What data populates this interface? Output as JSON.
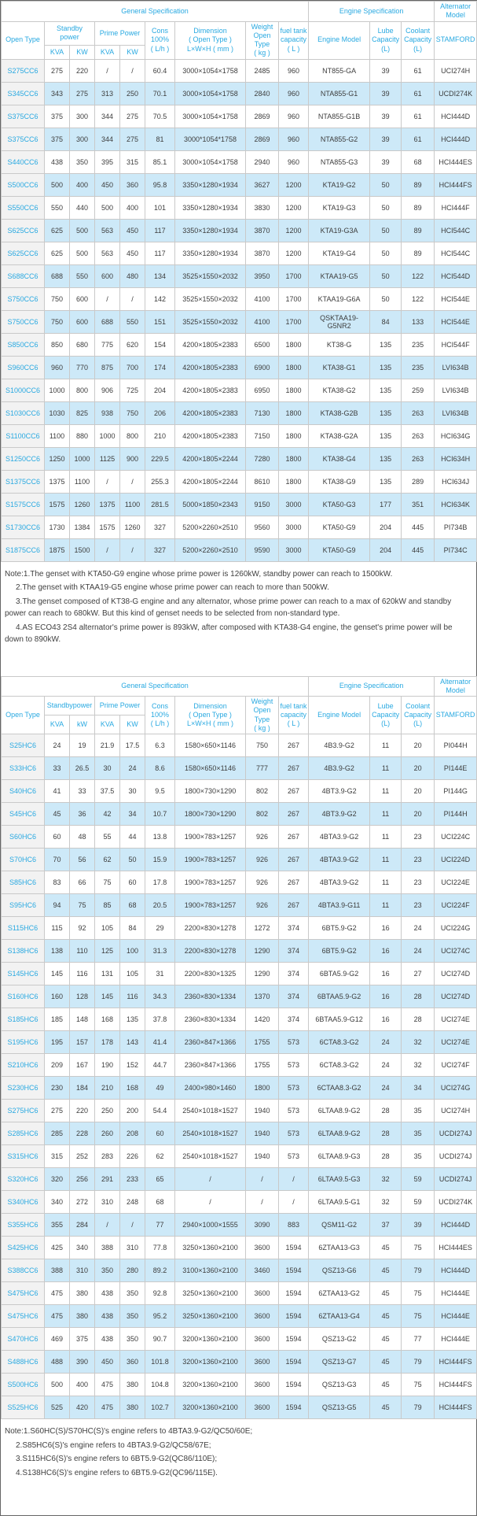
{
  "colors": {
    "accent": "#29a9e1",
    "row_alt_bg": "#cde9f8",
    "first_col_bg": "#f2f2f2",
    "border": "#c9c9c9",
    "body_text": "#3d3d3d"
  },
  "tables": [
    {
      "header": {
        "general": "General Specification",
        "engine": "Engine Specification",
        "alternator": "Alternator\nModel",
        "open_type": "Open Type",
        "standby": "Standby\npower",
        "prime": "Prime Power",
        "cons": "Cons\n100%\n( L/h )",
        "dimension": "Dimension\n( Open Type )\nL×W×H ( mm )",
        "weight": "Weight\nOpen Type\n( kg )",
        "fuel": "fuel tank\ncapacity\n( L )",
        "engine_model": "Engine Model",
        "lube": "Lube\nCapacity\n(L)",
        "coolant": "Coolant\nCapacity\n(L)",
        "stamford": "STAMFORD",
        "units": [
          "KVA",
          "KW",
          "KVA",
          "KW"
        ]
      },
      "rows": [
        [
          "S275CC6",
          "275",
          "220",
          "/",
          "/",
          "60.4",
          "3000×1054×1758",
          "2485",
          "960",
          "NT855-GA",
          "39",
          "61",
          "UCI274H"
        ],
        [
          "S345CC6",
          "343",
          "275",
          "313",
          "250",
          "70.1",
          "3000×1054×1758",
          "2840",
          "960",
          "NTA855-G1",
          "39",
          "61",
          "UCDI274K"
        ],
        [
          "S375CC6",
          "375",
          "300",
          "344",
          "275",
          "70.5",
          "3000×1054×1758",
          "2869",
          "960",
          "NTA855-G1B",
          "39",
          "61",
          "HCI444D"
        ],
        [
          "S375CC6",
          "375",
          "300",
          "344",
          "275",
          "81",
          "3000*1054*1758",
          "2869",
          "960",
          "NTA855-G2",
          "39",
          "61",
          "HCI444D"
        ],
        [
          "S440CC6",
          "438",
          "350",
          "395",
          "315",
          "85.1",
          "3000×1054×1758",
          "2940",
          "960",
          "NTA855-G3",
          "39",
          "68",
          "HCI444ES"
        ],
        [
          "S500CC6",
          "500",
          "400",
          "450",
          "360",
          "95.8",
          "3350×1280×1934",
          "3627",
          "1200",
          "KTA19-G2",
          "50",
          "89",
          "HCI444FS"
        ],
        [
          "S550CC6",
          "550",
          "440",
          "500",
          "400",
          "101",
          "3350×1280×1934",
          "3830",
          "1200",
          "KTA19-G3",
          "50",
          "89",
          "HCI444F"
        ],
        [
          "S625CC6",
          "625",
          "500",
          "563",
          "450",
          "117",
          "3350×1280×1934",
          "3870",
          "1200",
          "KTA19-G3A",
          "50",
          "89",
          "HCI544C"
        ],
        [
          "S625CC6",
          "625",
          "500",
          "563",
          "450",
          "117",
          "3350×1280×1934",
          "3870",
          "1200",
          "KTA19-G4",
          "50",
          "89",
          "HCI544C"
        ],
        [
          "S688CC6",
          "688",
          "550",
          "600",
          "480",
          "134",
          "3525×1550×2032",
          "3950",
          "1700",
          "KTAA19-G5",
          "50",
          "122",
          "HCI544D"
        ],
        [
          "S750CC6",
          "750",
          "600",
          "/",
          "/",
          "142",
          "3525×1550×2032",
          "4100",
          "1700",
          "KTAA19-G6A",
          "50",
          "122",
          "HCI544E"
        ],
        [
          "S750CC6",
          "750",
          "600",
          "688",
          "550",
          "151",
          "3525×1550×2032",
          "4100",
          "1700",
          "QSKTAA19-G5NR2",
          "84",
          "133",
          "HCI544E"
        ],
        [
          "S850CC6",
          "850",
          "680",
          "775",
          "620",
          "154",
          "4200×1805×2383",
          "6500",
          "1800",
          "KT38-G",
          "135",
          "235",
          "HCI544F"
        ],
        [
          "S960CC6",
          "960",
          "770",
          "875",
          "700",
          "174",
          "4200×1805×2383",
          "6900",
          "1800",
          "KTA38-G1",
          "135",
          "235",
          "LVI634B"
        ],
        [
          "S1000CC6",
          "1000",
          "800",
          "906",
          "725",
          "204",
          "4200×1805×2383",
          "6950",
          "1800",
          "KTA38-G2",
          "135",
          "259",
          "LVI634B"
        ],
        [
          "S1030CC6",
          "1030",
          "825",
          "938",
          "750",
          "206",
          "4200×1805×2383",
          "7130",
          "1800",
          "KTA38-G2B",
          "135",
          "263",
          "LVI634B"
        ],
        [
          "S1100CC6",
          "1100",
          "880",
          "1000",
          "800",
          "210",
          "4200×1805×2383",
          "7150",
          "1800",
          "KTA38-G2A",
          "135",
          "263",
          "HCI634G"
        ],
        [
          "S1250CC6",
          "1250",
          "1000",
          "1125",
          "900",
          "229.5",
          "4200×1805×2244",
          "7280",
          "1800",
          "KTA38-G4",
          "135",
          "263",
          "HCI634H"
        ],
        [
          "S1375CC6",
          "1375",
          "1100",
          "/",
          "/",
          "255.3",
          "4200×1805×2244",
          "8610",
          "1800",
          "KTA38-G9",
          "135",
          "289",
          "HCI634J"
        ],
        [
          "S1575CC6",
          "1575",
          "1260",
          "1375",
          "1100",
          "281.5",
          "5000×1850×2343",
          "9150",
          "3000",
          "KTA50-G3",
          "177",
          "351",
          "HCI634K"
        ],
        [
          "S1730CC6",
          "1730",
          "1384",
          "1575",
          "1260",
          "327",
          "5200×2260×2510",
          "9560",
          "3000",
          "KTA50-G9",
          "204",
          "445",
          "PI734B"
        ],
        [
          "S1875CC6",
          "1875",
          "1500",
          "/",
          "/",
          "327",
          "5200×2260×2510",
          "9590",
          "3000",
          "KTA50-G9",
          "204",
          "445",
          "PI734C"
        ]
      ]
    },
    {
      "header": {
        "general": "General Specification",
        "engine": "Engine Specification",
        "alternator": "Alternator\nModel",
        "open_type": "Open Type",
        "standby": "Standbypower",
        "prime": "Prime Power",
        "cons": "Cons\n100%\n( L/h )",
        "dimension": "Dimension\n( Open Type )\nL×W×H ( mm )",
        "weight": "Weight\nOpen Type\n( kg )",
        "fuel": "fuel tank\ncapacity\n( L )",
        "engine_model": "Engine Model",
        "lube": "Lube\nCapacity\n(L)",
        "coolant": "Coolant\nCapacity\n(L)",
        "stamford": "STAMFORD",
        "units": [
          "KVA",
          "kW",
          "KVA",
          "KW"
        ]
      },
      "rows": [
        [
          "S25HC6",
          "24",
          "19",
          "21.9",
          "17.5",
          "6.3",
          "1580×650×1146",
          "750",
          "267",
          "4B3.9-G2",
          "11",
          "20",
          "PI044H"
        ],
        [
          "S33HC6",
          "33",
          "26.5",
          "30",
          "24",
          "8.6",
          "1580×650×1146",
          "777",
          "267",
          "4B3.9-G2",
          "11",
          "20",
          "PI144E"
        ],
        [
          "S40HC6",
          "41",
          "33",
          "37.5",
          "30",
          "9.5",
          "1800×730×1290",
          "802",
          "267",
          "4BT3.9-G2",
          "11",
          "20",
          "PI144G"
        ],
        [
          "S45HC6",
          "45",
          "36",
          "42",
          "34",
          "10.7",
          "1800×730×1290",
          "802",
          "267",
          "4BT3.9-G2",
          "11",
          "20",
          "PI144H"
        ],
        [
          "S60HC6",
          "60",
          "48",
          "55",
          "44",
          "13.8",
          "1900×783×1257",
          "926",
          "267",
          "4BTA3.9-G2",
          "11",
          "23",
          "UCI224C"
        ],
        [
          "S70HC6",
          "70",
          "56",
          "62",
          "50",
          "15.9",
          "1900×783×1257",
          "926",
          "267",
          "4BTA3.9-G2",
          "11",
          "23",
          "UCI224D"
        ],
        [
          "S85HC6",
          "83",
          "66",
          "75",
          "60",
          "17.8",
          "1900×783×1257",
          "926",
          "267",
          "4BTA3.9-G2",
          "11",
          "23",
          "UCI224E"
        ],
        [
          "S95HC6",
          "94",
          "75",
          "85",
          "68",
          "20.5",
          "1900×783×1257",
          "926",
          "267",
          "4BTA3.9-G11",
          "11",
          "23",
          "UCI224F"
        ],
        [
          "S115HC6",
          "115",
          "92",
          "105",
          "84",
          "29",
          "2200×830×1278",
          "1272",
          "374",
          "6BT5.9-G2",
          "16",
          "24",
          "UCI224G"
        ],
        [
          "S138HC6",
          "138",
          "110",
          "125",
          "100",
          "31.3",
          "2200×830×1278",
          "1290",
          "374",
          "6BT5.9-G2",
          "16",
          "24",
          "UCI274C"
        ],
        [
          "S145HC6",
          "145",
          "116",
          "131",
          "105",
          "31",
          "2200×830×1325",
          "1290",
          "374",
          "6BTA5.9-G2",
          "16",
          "27",
          "UCI274D"
        ],
        [
          "S160HC6",
          "160",
          "128",
          "145",
          "116",
          "34.3",
          "2360×830×1334",
          "1370",
          "374",
          "6BTAA5.9-G2",
          "16",
          "28",
          "UCI274D"
        ],
        [
          "S185HC6",
          "185",
          "148",
          "168",
          "135",
          "37.8",
          "2360×830×1334",
          "1420",
          "374",
          "6BTAA5.9-G12",
          "16",
          "28",
          "UCI274E"
        ],
        [
          "S195HC6",
          "195",
          "157",
          "178",
          "143",
          "41.4",
          "2360×847×1366",
          "1755",
          "573",
          "6CTA8.3-G2",
          "24",
          "32",
          "UCI274E"
        ],
        [
          "S210HC6",
          "209",
          "167",
          "190",
          "152",
          "44.7",
          "2360×847×1366",
          "1755",
          "573",
          "6CTA8.3-G2",
          "24",
          "32",
          "UCI274F"
        ],
        [
          "S230HC6",
          "230",
          "184",
          "210",
          "168",
          "49",
          "2400×980×1460",
          "1800",
          "573",
          "6CTAA8.3-G2",
          "24",
          "34",
          "UCI274G"
        ],
        [
          "S275HC6",
          "275",
          "220",
          "250",
          "200",
          "54.4",
          "2540×1018×1527",
          "1940",
          "573",
          "6LTAA8.9-G2",
          "28",
          "35",
          "UCI274H"
        ],
        [
          "S285HC6",
          "285",
          "228",
          "260",
          "208",
          "60",
          "2540×1018×1527",
          "1940",
          "573",
          "6LTAA8.9-G2",
          "28",
          "35",
          "UCDI274J"
        ],
        [
          "S315HC6",
          "315",
          "252",
          "283",
          "226",
          "62",
          "2540×1018×1527",
          "1940",
          "573",
          "6LTAA8.9-G3",
          "28",
          "35",
          "UCDI274J"
        ],
        [
          "S320HC6",
          "320",
          "256",
          "291",
          "233",
          "65",
          "/",
          "/",
          "/",
          "6LTAA9.5-G3",
          "32",
          "59",
          "UCDI274J"
        ],
        [
          "S340HC6",
          "340",
          "272",
          "310",
          "248",
          "68",
          "/",
          "/",
          "/",
          "6LTAA9.5-G1",
          "32",
          "59",
          "UCDI274K"
        ],
        [
          "S355HC6",
          "355",
          "284",
          "/",
          "/",
          "77",
          "2940×1000×1555",
          "3090",
          "883",
          "QSM11-G2",
          "37",
          "39",
          "HCI444D"
        ],
        [
          "S425HC6",
          "425",
          "340",
          "388",
          "310",
          "77.8",
          "3250×1360×2100",
          "3600",
          "1594",
          "6ZTAA13-G3",
          "45",
          "75",
          "HCI444ES"
        ],
        [
          "S388CC6",
          "388",
          "310",
          "350",
          "280",
          "89.2",
          "3100×1360×2100",
          "3460",
          "1594",
          "QSZ13-G6",
          "45",
          "79",
          "HCI444D"
        ],
        [
          "S475HC6",
          "475",
          "380",
          "438",
          "350",
          "92.8",
          "3250×1360×2100",
          "3600",
          "1594",
          "6ZTAA13-G2",
          "45",
          "75",
          "HCI444E"
        ],
        [
          "S475HC6",
          "475",
          "380",
          "438",
          "350",
          "95.2",
          "3250×1360×2100",
          "3600",
          "1594",
          "6ZTAA13-G4",
          "45",
          "75",
          "HCI444E"
        ],
        [
          "S470HC6",
          "469",
          "375",
          "438",
          "350",
          "90.7",
          "3200×1360×2100",
          "3600",
          "1594",
          "QSZ13-G2",
          "45",
          "77",
          "HCI444E"
        ],
        [
          "S488HC6",
          "488",
          "390",
          "450",
          "360",
          "101.8",
          "3200×1360×2100",
          "3600",
          "1594",
          "QSZ13-G7",
          "45",
          "79",
          "HCI444FS"
        ],
        [
          "S500HC6",
          "500",
          "400",
          "475",
          "380",
          "104.8",
          "3200×1360×2100",
          "3600",
          "1594",
          "QSZ13-G3",
          "45",
          "75",
          "HCI444FS"
        ],
        [
          "S525HC6",
          "525",
          "420",
          "475",
          "380",
          "102.7",
          "3200×1360×2100",
          "3600",
          "1594",
          "QSZ13-G5",
          "45",
          "79",
          "HCI444FS"
        ]
      ]
    }
  ],
  "notes_top": [
    "Note:1.The genset with KTA50-G9 engine whose prime power is 1260kW, standby power can reach to 1500kW.",
    "2.The genset with KTAA19-G5 engine whose prime power can reach to more than 500kW.",
    "3.The genset composed of KT38-G engine and any alternator, whose prime power can reach to a max of 620kW and standby power can reach to 680kW. But this kind of genset needs to be selected from non-standard type.",
    "4.AS ECO43 2S4 alternator's prime power is 893kW, after composed with KTA38-G4 engine, the genset's prime power will be down to 890kW."
  ],
  "notes_bottom": [
    "Note:1.S60HC(S)/S70HC(S)'s engine refers to 4BTA3.9-G2/QC50/60E;",
    "2.S85HC6(S)'s engine refers to 4BTA3.9-G2/QC58/67E;",
    "3.S115HC6(S)'s engine refers to 6BT5.9-G2(QC86/110E);",
    "4.S138HC6(S)'s engine refers to 6BT5.9-G2(QC96/115E)."
  ]
}
